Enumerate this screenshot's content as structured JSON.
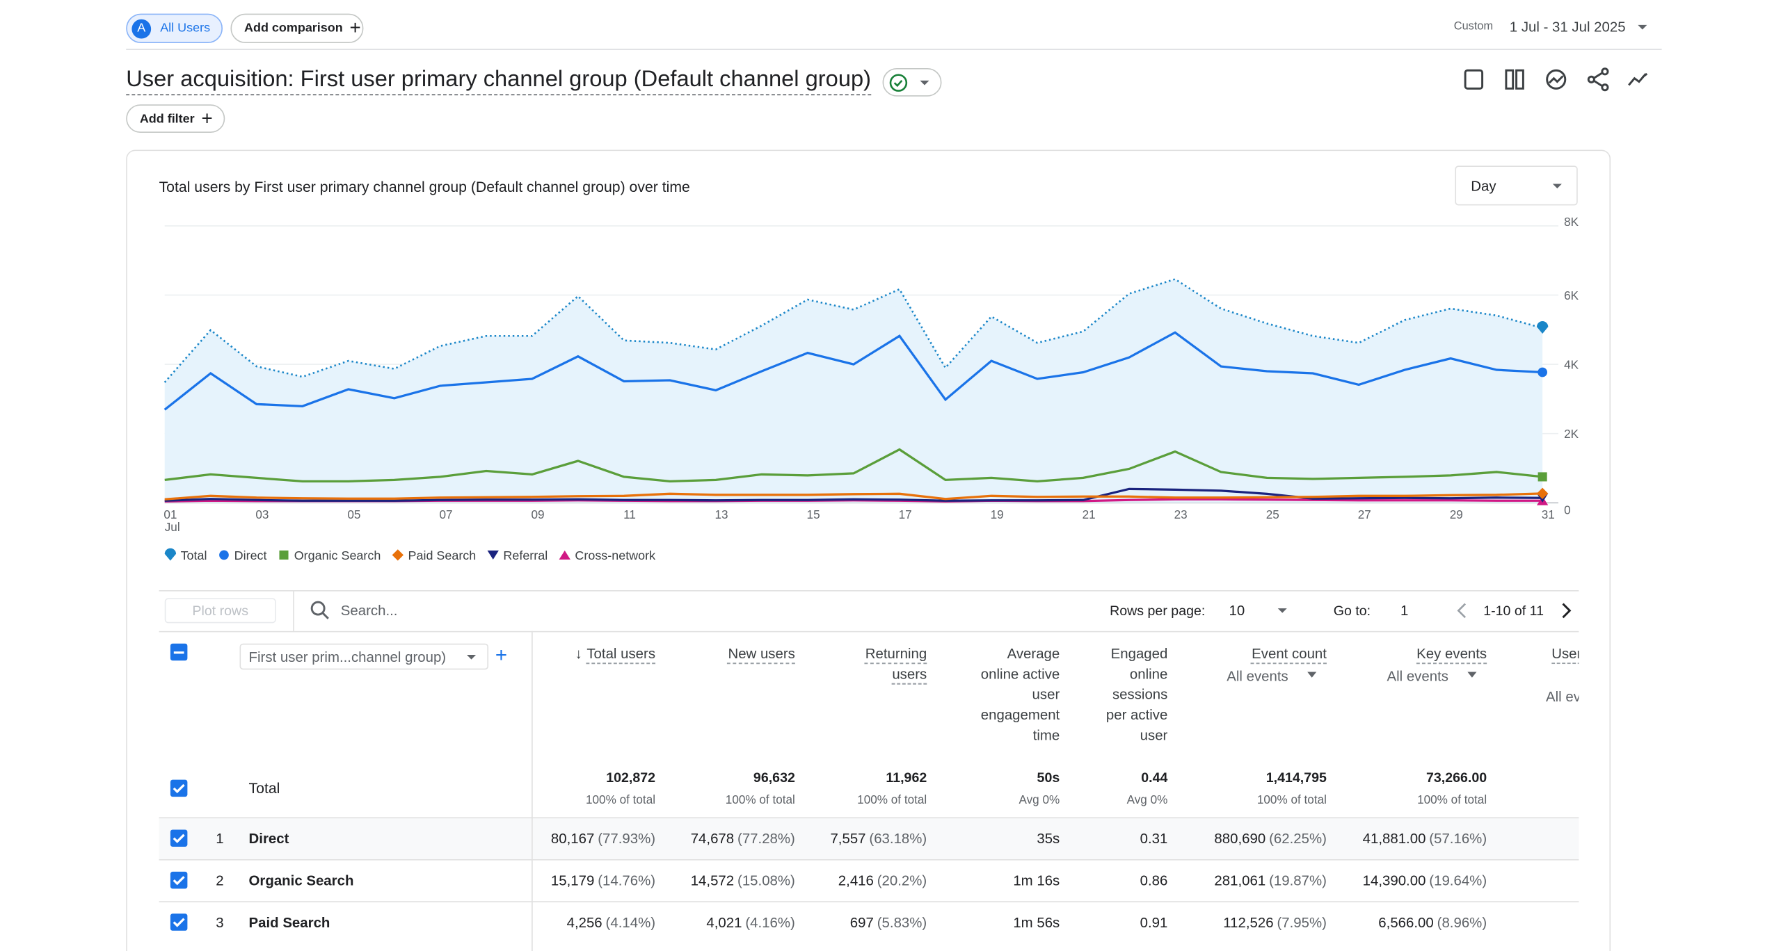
{
  "segment": "All Users",
  "segment_badge": "A",
  "add_comparison": "Add comparison",
  "date_range": {
    "label": "Custom",
    "value": "1 Jul - 31 Jul 2025"
  },
  "report_title": "User acquisition: First user primary channel group (Default channel group)",
  "add_filter": "Add filter",
  "chart_data": {
    "type": "line",
    "title": "Total users by First user primary channel group (Default channel group) over time",
    "granularity": "Day",
    "categories": [
      "01",
      null,
      "03",
      null,
      "05",
      null,
      "07",
      null,
      "09",
      null,
      "11",
      null,
      "13",
      null,
      "15",
      null,
      "17",
      null,
      "19",
      null,
      "21",
      null,
      "23",
      null,
      "25",
      null,
      "27",
      null,
      "29",
      null,
      "31"
    ],
    "month": "Jul",
    "ylim": [
      0,
      8000
    ],
    "yticks": [
      {
        "value": 0,
        "label": "0"
      },
      {
        "value": 2000,
        "label": "2K"
      },
      {
        "value": 4000,
        "label": "4K"
      },
      {
        "value": 6000,
        "label": "6K"
      },
      {
        "value": 8000,
        "label": "8K"
      }
    ],
    "grid": true,
    "series": [
      {
        "name": "Total",
        "color": "#1a86c8",
        "marker": "pin",
        "dashed": true,
        "area": "#e6f3fc",
        "values": [
          3480,
          4990,
          3940,
          3640,
          4100,
          3870,
          4530,
          4820,
          4820,
          5970,
          4690,
          4620,
          4430,
          5120,
          5870,
          5580,
          6170,
          3900,
          5380,
          4620,
          4950,
          6040,
          6460,
          5610,
          5180,
          4820,
          4620,
          5280,
          5610,
          5410,
          5050
        ]
      },
      {
        "name": "Direct",
        "color": "#1a73e8",
        "marker": "circle",
        "values": [
          2690,
          3740,
          2850,
          2790,
          3280,
          3020,
          3380,
          3480,
          3580,
          4230,
          3510,
          3540,
          3250,
          3800,
          4330,
          4000,
          4820,
          2980,
          4100,
          3580,
          3770,
          4200,
          4920,
          3940,
          3800,
          3740,
          3410,
          3840,
          4170,
          3840,
          3770
        ]
      },
      {
        "name": "Organic Search",
        "color": "#5a9e3a",
        "marker": "square",
        "values": [
          660,
          820,
          720,
          620,
          620,
          660,
          750,
          920,
          820,
          1210,
          750,
          620,
          660,
          820,
          790,
          850,
          1540,
          660,
          720,
          620,
          720,
          980,
          1480,
          890,
          720,
          690,
          720,
          750,
          790,
          890,
          750
        ]
      },
      {
        "name": "Paid Search",
        "color": "#e8710a",
        "marker": "diamond",
        "values": [
          100,
          200,
          150,
          130,
          120,
          120,
          150,
          160,
          170,
          190,
          200,
          260,
          230,
          230,
          230,
          250,
          260,
          110,
          200,
          170,
          180,
          180,
          150,
          150,
          160,
          170,
          200,
          200,
          220,
          230,
          270
        ]
      },
      {
        "name": "Referral",
        "color": "#1a237e",
        "marker": "down",
        "values": [
          60,
          110,
          80,
          60,
          60,
          60,
          80,
          90,
          90,
          100,
          80,
          80,
          70,
          80,
          80,
          100,
          90,
          60,
          70,
          70,
          80,
          400,
          380,
          350,
          260,
          120,
          130,
          140,
          130,
          150,
          140
        ]
      },
      {
        "name": "Cross-network",
        "color": "#d01884",
        "marker": "up",
        "values": [
          40,
          60,
          50,
          50,
          50,
          50,
          60,
          60,
          60,
          70,
          60,
          50,
          50,
          60,
          60,
          70,
          60,
          40,
          60,
          50,
          50,
          80,
          100,
          100,
          90,
          80,
          70,
          70,
          70,
          60,
          60
        ]
      }
    ]
  },
  "table": {
    "plot_rows": "Plot rows",
    "search_placeholder": "Search...",
    "rows_per_page_label": "Rows per page:",
    "rows_per_page": "10",
    "goto_label": "Go to:",
    "goto": "1",
    "pagination": "1-10 of 11",
    "dimension": "First user prim...channel group)",
    "columns": [
      {
        "title": "Total users"
      },
      {
        "title": "New users"
      },
      {
        "title": "Returning users"
      },
      {
        "title": "Average online active user engagement time"
      },
      {
        "title": "Engaged online sessions per active user"
      },
      {
        "title": "Event count",
        "sub": "All events"
      },
      {
        "title": "Key events",
        "sub": "All events"
      },
      {
        "title": "User",
        "sub": "All ev"
      }
    ],
    "total": {
      "label": "Total",
      "cells": [
        {
          "value": "102,872",
          "note": "100% of total"
        },
        {
          "value": "96,632",
          "note": "100% of total"
        },
        {
          "value": "11,962",
          "note": "100% of total"
        },
        {
          "value": "50s",
          "note": "Avg 0%"
        },
        {
          "value": "0.44",
          "note": "Avg 0%"
        },
        {
          "value": "1,414,795",
          "note": "100% of total"
        },
        {
          "value": "73,266.00",
          "note": "100% of total"
        }
      ]
    },
    "rows": [
      {
        "rank": "1",
        "name": "Direct",
        "cells": [
          {
            "value": "80,167",
            "share": "(77.93%)"
          },
          {
            "value": "74,678",
            "share": "(77.28%)"
          },
          {
            "value": "7,557",
            "share": "(63.18%)"
          },
          {
            "value": "35s"
          },
          {
            "value": "0.31"
          },
          {
            "value": "880,690",
            "share": "(62.25%)"
          },
          {
            "value": "41,881.00",
            "share": "(57.16%)"
          }
        ]
      },
      {
        "rank": "2",
        "name": "Organic Search",
        "cells": [
          {
            "value": "15,179",
            "share": "(14.76%)"
          },
          {
            "value": "14,572",
            "share": "(15.08%)"
          },
          {
            "value": "2,416",
            "share": "(20.2%)"
          },
          {
            "value": "1m 16s"
          },
          {
            "value": "0.86"
          },
          {
            "value": "281,061",
            "share": "(19.87%)"
          },
          {
            "value": "14,390.00",
            "share": "(19.64%)"
          }
        ]
      },
      {
        "rank": "3",
        "name": "Paid Search",
        "cells": [
          {
            "value": "4,256",
            "share": "(4.14%)"
          },
          {
            "value": "4,021",
            "share": "(4.16%)"
          },
          {
            "value": "697",
            "share": "(5.83%)"
          },
          {
            "value": "1m 56s"
          },
          {
            "value": "0.91"
          },
          {
            "value": "112,526",
            "share": "(7.95%)"
          },
          {
            "value": "6,566.00",
            "share": "(8.96%)"
          }
        ]
      }
    ]
  }
}
